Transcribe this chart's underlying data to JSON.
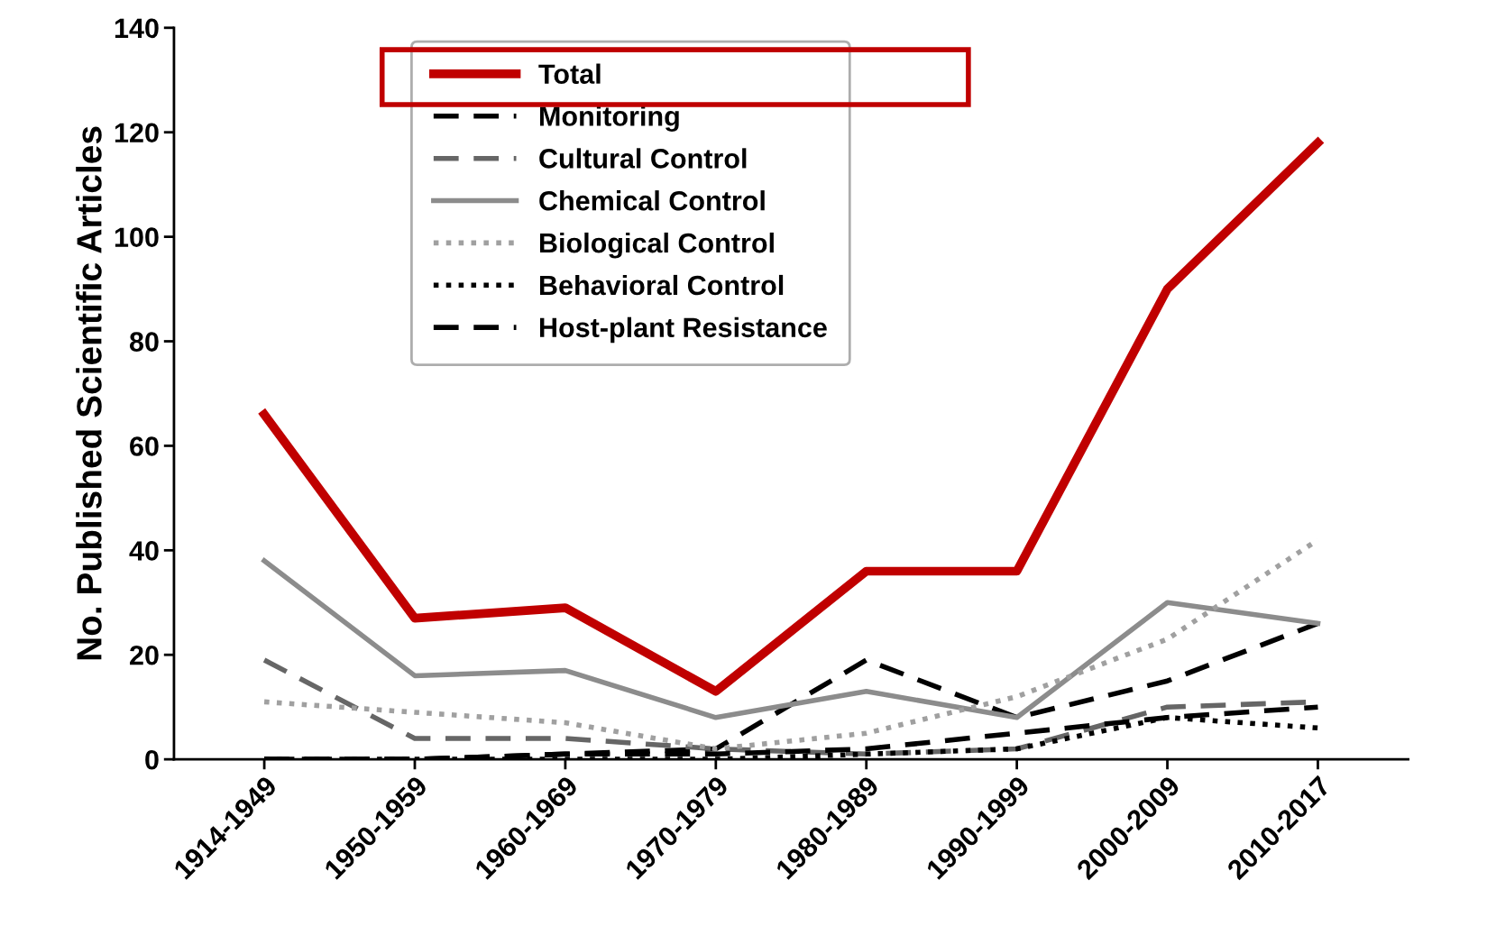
{
  "chart_data": {
    "type": "line",
    "ylabel": "No. Published Scientific Articles",
    "categories": [
      "1914-1949",
      "1950-1959",
      "1960-1969",
      "1970-1979",
      "1980-1989",
      "1990-1999",
      "2000-2009",
      "2010-2017"
    ],
    "series": [
      {
        "name": "Total",
        "color": "#c00000",
        "line_style": "solid",
        "values": [
          66,
          27,
          29,
          13,
          36,
          36,
          90,
          118
        ]
      },
      {
        "name": "Monitoring",
        "color": "#000000",
        "line_style": "dashed",
        "values": [
          0,
          0,
          1,
          2,
          19,
          8,
          15,
          26
        ]
      },
      {
        "name": "Cultural Control",
        "color": "#666666",
        "line_style": "dashed",
        "values": [
          19,
          4,
          4,
          2,
          1,
          2,
          10,
          11
        ]
      },
      {
        "name": "Chemical Control",
        "color": "#8c8c8c",
        "line_style": "solid",
        "values": [
          38,
          16,
          17,
          8,
          13,
          8,
          30,
          26
        ]
      },
      {
        "name": "Biological Control",
        "color": "#a0a0a0",
        "line_style": "dotted",
        "values": [
          11,
          9,
          7,
          2,
          5,
          12,
          23,
          42
        ]
      },
      {
        "name": "Behavioral Control",
        "color": "#000000",
        "line_style": "dotted",
        "values": [
          0,
          0,
          0,
          0,
          1,
          2,
          8,
          6
        ]
      },
      {
        "name": "Host-plant Resistance",
        "color": "#000000",
        "line_style": "dashed",
        "values": [
          0,
          0,
          1,
          1,
          2,
          5,
          8,
          10
        ]
      }
    ],
    "ylim": [
      0,
      140
    ],
    "yticks": [
      0,
      20,
      40,
      60,
      80,
      100,
      120,
      140
    ],
    "grid": false,
    "legend": "top"
  }
}
